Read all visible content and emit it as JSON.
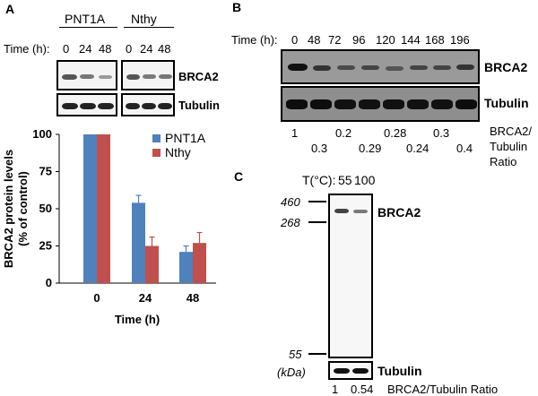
{
  "panelA": {
    "letter": "A",
    "cell_lines": [
      "PNT1A",
      "Nthy"
    ],
    "time_label": "Time (h):",
    "times": [
      "0",
      "24",
      "48"
    ],
    "blot_labels": [
      "BRCA2",
      "Tubulin"
    ]
  },
  "panelB": {
    "letter": "B",
    "time_label": "Time (h):",
    "times": [
      "0",
      "48",
      "72",
      "96",
      "120",
      "144",
      "168",
      "196"
    ],
    "blot_labels": [
      "BRCA2",
      "Tubulin"
    ],
    "ratios_row1": [
      "1",
      "0.2",
      "0.28",
      "0.3"
    ],
    "ratios_row2": [
      "0.3",
      "0.29",
      "0.24",
      "0.4"
    ],
    "ratio_legend": [
      "BRCA2/",
      "Tubulin",
      "Ratio"
    ]
  },
  "panelC": {
    "letter": "C",
    "temp_label": "T(°C):",
    "temps": [
      "55",
      "100"
    ],
    "markers": [
      "460",
      "268",
      "55"
    ],
    "kda": "(kDa)",
    "blot_labels": [
      "BRCA2",
      "Tubulin"
    ],
    "ratios": [
      "1",
      "0.54"
    ],
    "ratio_legend": "BRCA2/Tubulin Ratio"
  },
  "chart_data": {
    "type": "bar",
    "categories": [
      "0",
      "24",
      "48"
    ],
    "series": [
      {
        "name": "PNT1A",
        "values": [
          100,
          54,
          21
        ],
        "errors": [
          0,
          5,
          4
        ],
        "color": "#4f81bd"
      },
      {
        "name": "Nthy",
        "values": [
          100,
          25,
          27
        ],
        "errors": [
          0,
          6,
          7
        ],
        "color": "#c0504d"
      }
    ],
    "xlabel": "Time (h)",
    "ylabel": [
      "BRCA2 protein levels",
      "(% of control)"
    ],
    "ylim": [
      0,
      100
    ],
    "yticks": [
      0,
      25,
      50,
      75,
      100
    ],
    "legend_position": "top-right",
    "grid": false
  }
}
